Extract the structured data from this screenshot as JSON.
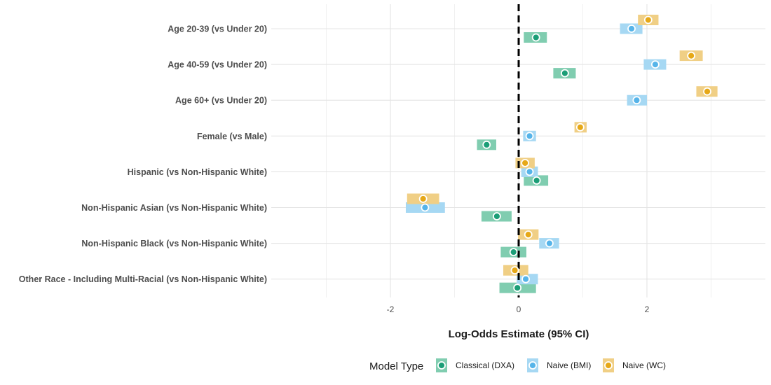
{
  "chart_data": {
    "type": "forest",
    "xlabel": "Log-Odds Estimate (95% CI)",
    "xlim": [
      -3.2,
      3.8
    ],
    "xticks": [
      -2,
      0,
      2
    ],
    "tick_labels": [
      "-2",
      "0",
      "2"
    ],
    "reference_line": 0,
    "grid": true,
    "legend": {
      "title": "Model Type",
      "position": "bottom"
    },
    "categories": [
      "Age 20-39 (vs Under 20)",
      "Age 40-59 (vs Under 20)",
      "Age 60+ (vs Under 20)",
      "Female (vs Male)",
      "Hispanic (vs Non-Hispanic White)",
      "Non-Hispanic Asian (vs Non-Hispanic White)",
      "Non-Hispanic Black (vs Non-Hispanic White)",
      "Other Race - Including Multi-Racial (vs Non-Hispanic White)"
    ],
    "series": [
      {
        "name": "Classical (DXA)",
        "color": "#1b9e77",
        "band_color": "#80cdb0",
        "estimates": [
          0.27,
          0.72,
          null,
          -0.5,
          0.28,
          -0.34,
          -0.08,
          -0.02
        ],
        "ci_low": [
          0.08,
          0.54,
          null,
          -0.65,
          0.08,
          -0.58,
          -0.28,
          -0.3
        ],
        "ci_high": [
          0.44,
          0.89,
          null,
          -0.35,
          0.46,
          -0.11,
          0.12,
          0.27
        ]
      },
      {
        "name": "Naive (BMI)",
        "color": "#56b4e9",
        "band_color": "#a6d8f3",
        "estimates": [
          1.76,
          2.13,
          1.84,
          0.17,
          0.17,
          -1.46,
          0.48,
          0.11
        ],
        "ci_low": [
          1.58,
          1.95,
          1.69,
          0.07,
          0.04,
          -1.76,
          0.32,
          -0.03
        ],
        "ci_high": [
          1.93,
          2.3,
          2.0,
          0.27,
          0.3,
          -1.15,
          0.63,
          0.3
        ]
      },
      {
        "name": "Naive (WC)",
        "color": "#e6a817",
        "band_color": "#f0cf85",
        "estimates": [
          2.02,
          2.69,
          2.94,
          0.96,
          0.1,
          -1.49,
          0.15,
          -0.06
        ],
        "ci_low": [
          1.86,
          2.51,
          2.77,
          0.87,
          -0.05,
          -1.74,
          -0.01,
          -0.24
        ],
        "ci_high": [
          2.18,
          2.87,
          3.1,
          1.06,
          0.25,
          -1.24,
          0.31,
          0.15
        ]
      }
    ]
  }
}
